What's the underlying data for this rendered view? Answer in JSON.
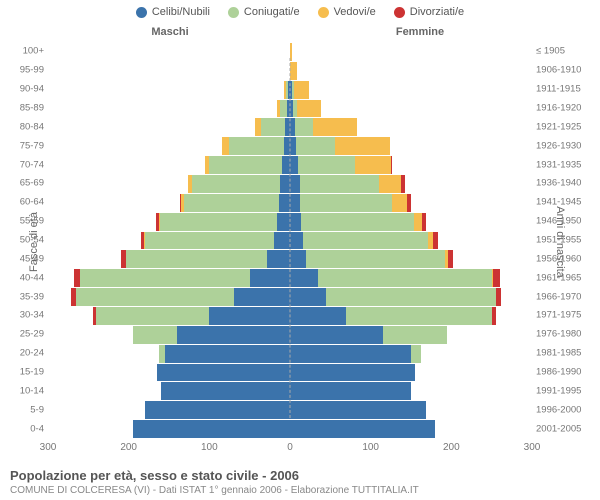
{
  "legend": [
    {
      "label": "Celibi/Nubili",
      "color": "#3b73ab"
    },
    {
      "label": "Coniugati/e",
      "color": "#aed199"
    },
    {
      "label": "Vedovi/e",
      "color": "#f6bd4e"
    },
    {
      "label": "Divorziati/e",
      "color": "#cc3333"
    }
  ],
  "side_labels": {
    "male": "Maschi",
    "female": "Femmine"
  },
  "y_left_title": "Fasce di età",
  "y_right_title": "Anni di nascita",
  "x_axis": {
    "max": 300,
    "ticks": [
      300,
      200,
      100,
      0,
      100,
      200,
      300
    ]
  },
  "footer": {
    "title": "Popolazione per età, sesso e stato civile - 2006",
    "sub": "COMUNE DI COLCERESA (VI) - Dati ISTAT 1° gennaio 2006 - Elaborazione TUTTITALIA.IT"
  },
  "chart": {
    "type": "population-pyramid",
    "background_color": "#ffffff",
    "rows": [
      {
        "age": "100+",
        "birth": "≤ 1905",
        "m": [
          0,
          0,
          0,
          0
        ],
        "f": [
          0,
          0,
          2,
          0
        ]
      },
      {
        "age": "95-99",
        "birth": "1906-1910",
        "m": [
          0,
          0,
          0,
          0
        ],
        "f": [
          0,
          0,
          9,
          0
        ]
      },
      {
        "age": "90-94",
        "birth": "1911-1915",
        "m": [
          3,
          2,
          3,
          0
        ],
        "f": [
          3,
          2,
          18,
          0
        ]
      },
      {
        "age": "85-89",
        "birth": "1916-1920",
        "m": [
          4,
          8,
          4,
          0
        ],
        "f": [
          4,
          5,
          30,
          0
        ]
      },
      {
        "age": "80-84",
        "birth": "1921-1925",
        "m": [
          6,
          30,
          8,
          0
        ],
        "f": [
          6,
          22,
          55,
          0
        ]
      },
      {
        "age": "75-79",
        "birth": "1926-1930",
        "m": [
          8,
          68,
          8,
          0
        ],
        "f": [
          8,
          48,
          68,
          0
        ]
      },
      {
        "age": "70-74",
        "birth": "1931-1935",
        "m": [
          10,
          90,
          6,
          0
        ],
        "f": [
          10,
          70,
          45,
          2
        ]
      },
      {
        "age": "65-69",
        "birth": "1936-1940",
        "m": [
          12,
          110,
          4,
          0
        ],
        "f": [
          12,
          98,
          28,
          4
        ]
      },
      {
        "age": "60-64",
        "birth": "1941-1945",
        "m": [
          14,
          118,
          3,
          2
        ],
        "f": [
          12,
          115,
          18,
          5
        ]
      },
      {
        "age": "55-59",
        "birth": "1946-1950",
        "m": [
          16,
          145,
          2,
          3
        ],
        "f": [
          14,
          140,
          10,
          5
        ]
      },
      {
        "age": "50-54",
        "birth": "1951-1955",
        "m": [
          20,
          160,
          1,
          4
        ],
        "f": [
          16,
          155,
          6,
          6
        ]
      },
      {
        "age": "45-49",
        "birth": "1956-1960",
        "m": [
          28,
          175,
          0,
          6
        ],
        "f": [
          20,
          172,
          4,
          6
        ]
      },
      {
        "age": "40-44",
        "birth": "1961-1965",
        "m": [
          50,
          210,
          0,
          8
        ],
        "f": [
          35,
          215,
          2,
          8
        ]
      },
      {
        "age": "35-39",
        "birth": "1966-1970",
        "m": [
          70,
          195,
          0,
          6
        ],
        "f": [
          45,
          210,
          1,
          6
        ]
      },
      {
        "age": "30-34",
        "birth": "1971-1975",
        "m": [
          100,
          140,
          0,
          4
        ],
        "f": [
          70,
          180,
          0,
          6
        ]
      },
      {
        "age": "25-29",
        "birth": "1976-1980",
        "m": [
          140,
          55,
          0,
          0
        ],
        "f": [
          115,
          80,
          0,
          0
        ]
      },
      {
        "age": "20-24",
        "birth": "1981-1985",
        "m": [
          155,
          8,
          0,
          0
        ],
        "f": [
          150,
          12,
          0,
          0
        ]
      },
      {
        "age": "15-19",
        "birth": "1986-1990",
        "m": [
          165,
          0,
          0,
          0
        ],
        "f": [
          155,
          0,
          0,
          0
        ]
      },
      {
        "age": "10-14",
        "birth": "1991-1995",
        "m": [
          160,
          0,
          0,
          0
        ],
        "f": [
          150,
          0,
          0,
          0
        ]
      },
      {
        "age": "5-9",
        "birth": "1996-2000",
        "m": [
          180,
          0,
          0,
          0
        ],
        "f": [
          168,
          0,
          0,
          0
        ]
      },
      {
        "age": "0-4",
        "birth": "2001-2005",
        "m": [
          195,
          0,
          0,
          0
        ],
        "f": [
          180,
          0,
          0,
          0
        ]
      }
    ]
  }
}
